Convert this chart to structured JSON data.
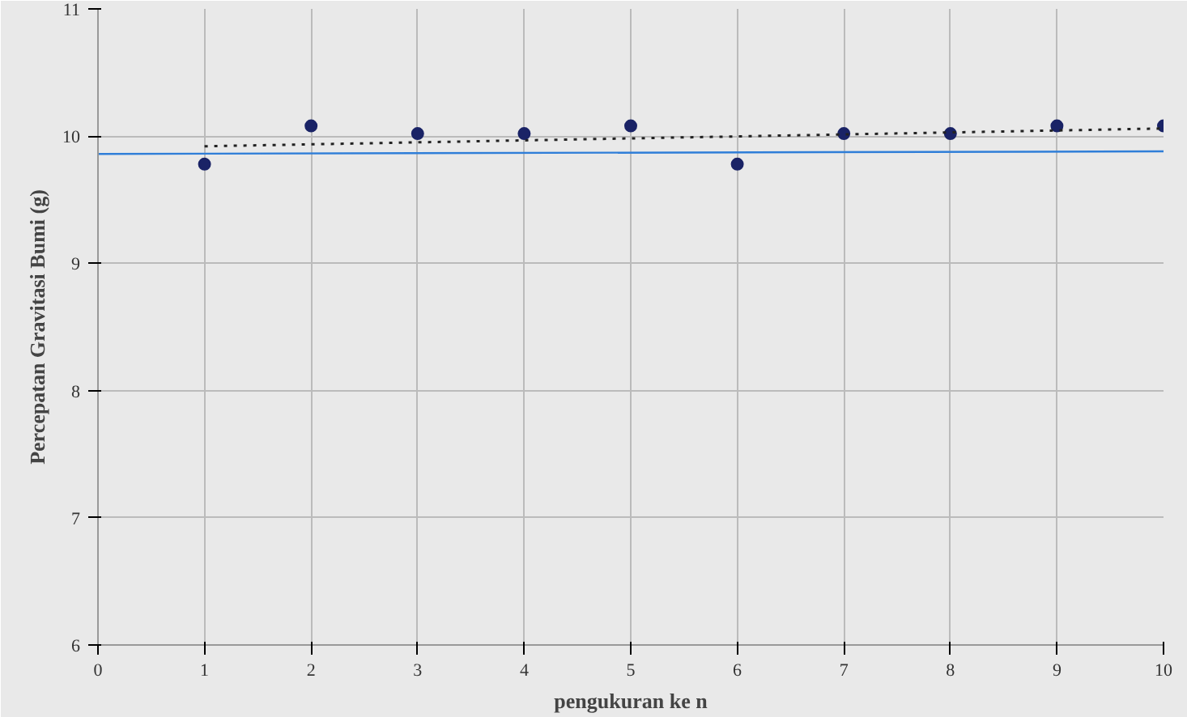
{
  "chart_data": {
    "type": "scatter",
    "xlabel": "pengukuran ke n",
    "ylabel": "Percepatan Gravitasi Bumi (g)",
    "x": [
      1,
      2,
      3,
      4,
      5,
      6,
      7,
      8,
      9,
      10
    ],
    "series": [
      {
        "color": "#1a2366",
        "marker": "circle",
        "values": [
          9.78,
          10.08,
          10.02,
          10.02,
          10.08,
          9.78,
          10.02,
          10.02,
          10.08,
          10.08
        ]
      },
      {
        "type": "line",
        "color": "#2f7ed8",
        "line_style": "solid",
        "marker": "none",
        "x": [
          0,
          10
        ],
        "values": [
          9.86,
          9.88
        ]
      },
      {
        "type": "line",
        "color": "#222222",
        "line_style": "dotted",
        "marker": "none",
        "x": [
          1,
          10
        ],
        "values": [
          9.92,
          10.06
        ]
      }
    ],
    "xlim": [
      0,
      10
    ],
    "ylim": [
      6,
      11
    ],
    "xticks": [
      0,
      1,
      2,
      3,
      4,
      5,
      6,
      7,
      8,
      9,
      10
    ],
    "yticks": [
      6,
      7,
      8,
      9,
      10,
      11
    ],
    "grid": true
  }
}
